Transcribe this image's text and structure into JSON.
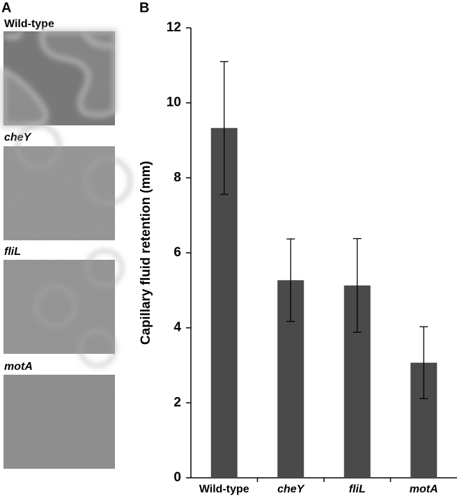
{
  "panels": {
    "a": {
      "label": "A",
      "images": [
        "Wild-type",
        "cheY",
        "fliL",
        "motA"
      ]
    },
    "b": {
      "label": "B"
    }
  },
  "chart_data": {
    "type": "bar",
    "ylabel": "Capillary fluid retention (mm)",
    "categories": [
      "Wild-type",
      "cheY",
      "fliL",
      "motA"
    ],
    "values": [
      9.33,
      5.27,
      5.13,
      3.07
    ],
    "errors": [
      1.77,
      1.1,
      1.25,
      0.96
    ],
    "color": "#4a4a4a",
    "ylim": [
      0,
      12
    ],
    "yticks": [
      0,
      2,
      4,
      6,
      8,
      10,
      12
    ],
    "grid": false
  }
}
